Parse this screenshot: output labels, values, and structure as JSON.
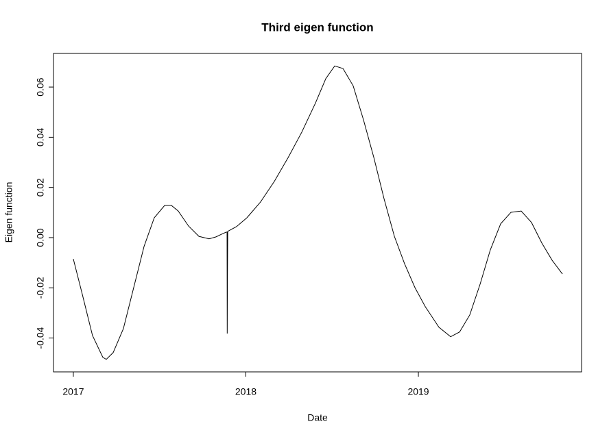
{
  "chart_data": {
    "type": "line",
    "title": "Third eigen function",
    "xlabel": "Date",
    "ylabel": "Eigen function",
    "x": [
      2017.0,
      2017.052,
      2017.111,
      2017.171,
      2017.191,
      2017.231,
      2017.29,
      2017.35,
      2017.41,
      2017.469,
      2017.529,
      2017.569,
      2017.608,
      2017.668,
      2017.728,
      2017.787,
      2017.827,
      2017.867,
      2017.887,
      2017.891,
      2017.892,
      2017.893,
      2017.895,
      2017.946,
      2018.006,
      2018.085,
      2018.165,
      2018.245,
      2018.324,
      2018.404,
      2018.463,
      2018.515,
      2018.563,
      2018.622,
      2018.682,
      2018.742,
      2018.801,
      2018.861,
      2018.92,
      2018.98,
      2019.04,
      2019.119,
      2019.187,
      2019.239,
      2019.298,
      2019.358,
      2019.417,
      2019.477,
      2019.537,
      2019.596,
      2019.656,
      2019.716,
      2019.775,
      2019.835
    ],
    "values": [
      -0.0085,
      -0.0226,
      -0.039,
      -0.0477,
      -0.0485,
      -0.0458,
      -0.0363,
      -0.0199,
      -0.0035,
      0.0079,
      0.0128,
      0.0128,
      0.0106,
      0.0046,
      0.0005,
      -0.0005,
      0.0003,
      0.0016,
      0.0022,
      0.0022,
      -0.0382,
      -0.0177,
      0.0025,
      0.0044,
      0.0079,
      0.0142,
      0.0224,
      0.0319,
      0.042,
      0.0537,
      0.0633,
      0.0684,
      0.0674,
      0.0605,
      0.0469,
      0.0319,
      0.0155,
      0.0005,
      -0.0104,
      -0.0199,
      -0.0275,
      -0.0357,
      -0.0395,
      -0.0376,
      -0.0308,
      -0.0185,
      -0.0049,
      0.0055,
      0.0101,
      0.0106,
      0.006,
      -0.0022,
      -0.009,
      -0.0145
    ],
    "color": "#000000",
    "xlim": [
      2016.885,
      2019.946
    ],
    "ylim": [
      -0.0535,
      0.0734
    ],
    "xticks": [
      2017,
      2018,
      2019
    ],
    "yticks": [
      -0.04,
      -0.02,
      {
        "value": 0,
        "label": "0.00"
      },
      0.02,
      0.04,
      0.06
    ]
  }
}
